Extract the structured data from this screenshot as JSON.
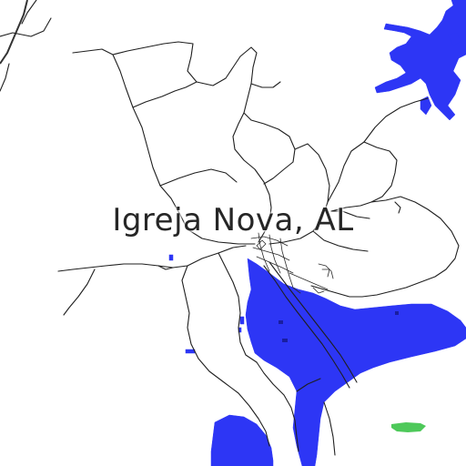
{
  "map": {
    "place_label": "Igreja Nova, AL",
    "colors": {
      "background": "#ffffff",
      "water": "#2d36f5",
      "roads": "#1f1f1f",
      "park": "#4ec95a"
    }
  }
}
